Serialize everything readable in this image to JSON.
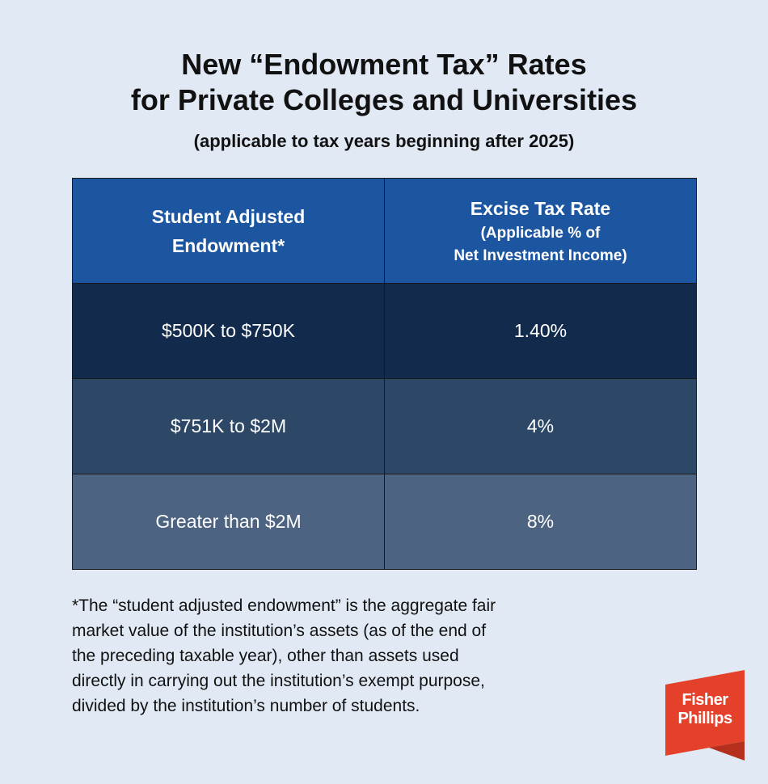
{
  "header": {
    "title_line1": "New “Endowment Tax” Rates",
    "title_line2": "for Private Colleges and Universities",
    "subtitle": "(applicable to tax years beginning after 2025)"
  },
  "table": {
    "col1_header_line1": "Student Adjusted",
    "col1_header_line2": "Endowment*",
    "col2_header": "Excise Tax Rate",
    "col2_subheader_line1": "(Applicable % of",
    "col2_subheader_line2": "Net Investment Income)",
    "rows": [
      {
        "endowment": "$500K to $750K",
        "rate": "1.40%"
      },
      {
        "endowment": "$751K to $2M",
        "rate": "4%"
      },
      {
        "endowment": "Greater than $2M",
        "rate": "8%"
      }
    ]
  },
  "footnote": {
    "lines": [
      "*The “student adjusted endowment” is the aggregate fair",
      "market value of the institution’s assets (as of the end of",
      "the preceding taxable year), other than assets used",
      "directly in carrying out the institution’s exempt purpose,",
      "divided by the institution’s number of students."
    ]
  },
  "logo": {
    "line1": "Fisher",
    "line2": "Phillips"
  },
  "colors": {
    "background": "#e1e9f5",
    "header_blue": "#1d56a0",
    "row1": "#122b4d",
    "row2": "#2d4866",
    "row3": "#4d6382",
    "logo_red": "#e5402a"
  }
}
